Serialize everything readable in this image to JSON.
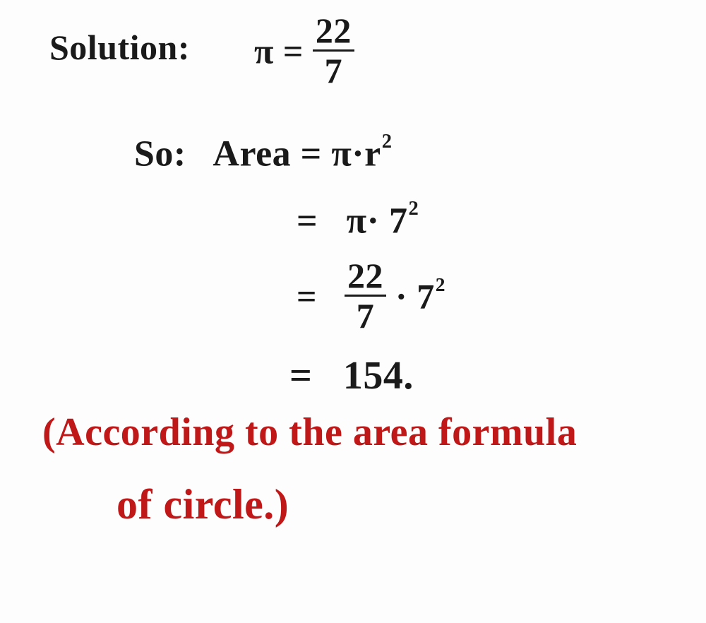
{
  "handwriting": {
    "ink_colors": {
      "black": "#1a1a1a",
      "red": "#c01818"
    },
    "background_color": "#fdfdfd",
    "font_family": "cursive-handwriting",
    "line1_label": "Solution:",
    "pi_symbol": "π",
    "equals": "=",
    "pi_fraction": {
      "numerator": "22",
      "denominator": "7"
    },
    "line2_prefix": "So:",
    "line2_area_word": "Area",
    "line2_rhs_pi": "π·r",
    "line2_rhs_exp": "2",
    "line3_rhs_pi": "π· 7",
    "line3_rhs_exp": "2",
    "line4_fraction": {
      "numerator": "22",
      "denominator": "7"
    },
    "line4_dot": "·",
    "line4_seven": "7",
    "line4_exp": "2",
    "line5_result": "154.",
    "annotation_line1_open": "(According",
    "annotation_line1_rest": " to the area formula",
    "annotation_line2": "of  circle.)"
  },
  "math": {
    "pi_approx_numerator": 22,
    "pi_approx_denominator": 7,
    "radius": 7,
    "formula": "Area = π · r^2",
    "computed_area": 154
  }
}
